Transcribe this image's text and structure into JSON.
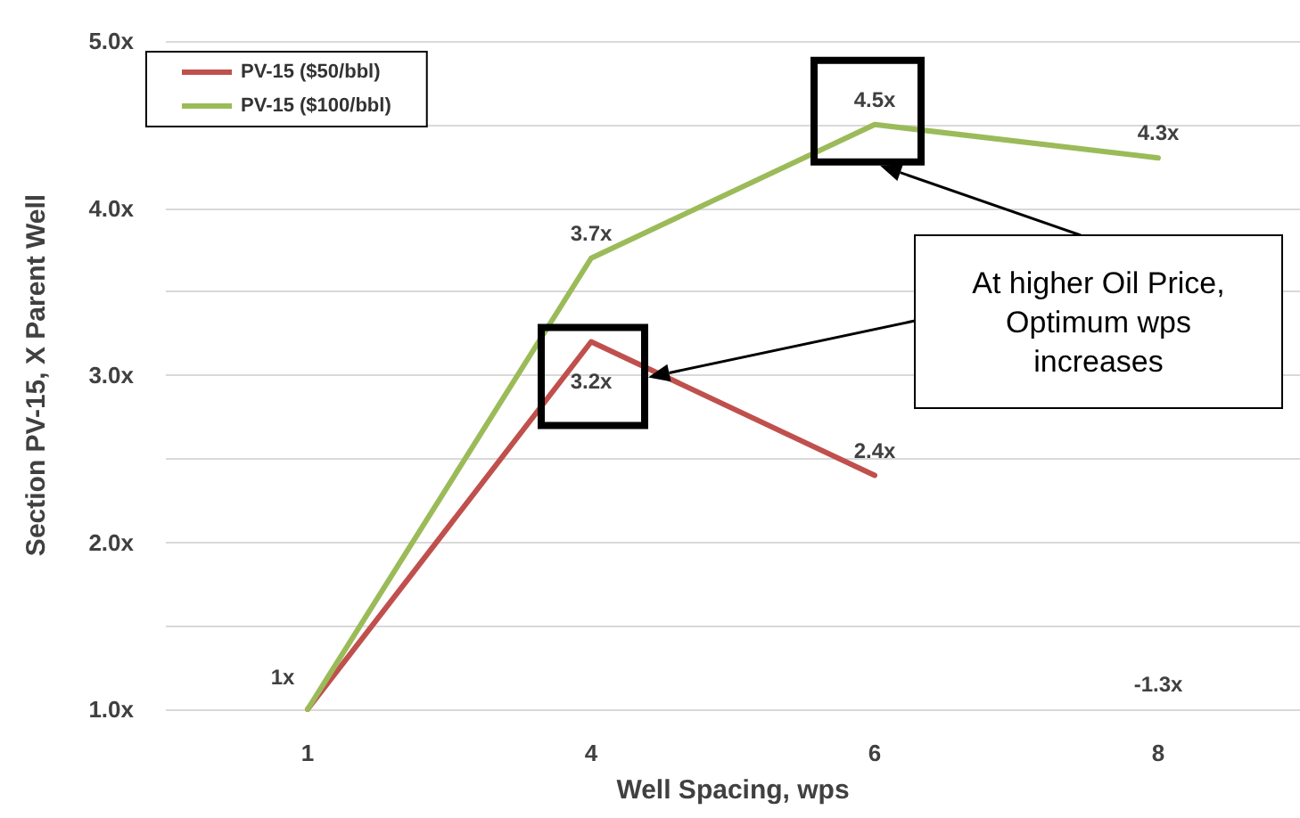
{
  "chart_data": {
    "type": "line",
    "xlabel": "Well Spacing, wps",
    "ylabel": "Section PV-15, X Parent Well",
    "categories": [
      "1",
      "4",
      "6",
      "8"
    ],
    "series": [
      {
        "name": "PV-15 ($50/bbl)",
        "color": "#c0504d",
        "values": [
          1,
          3.2,
          2.4,
          null
        ],
        "value_labels": [
          null,
          "3.2x",
          "2.4x",
          null
        ]
      },
      {
        "name": "PV-15 ($100/bbl)",
        "color": "#9bbb59",
        "values": [
          1,
          3.7,
          4.5,
          4.3
        ],
        "value_labels": [
          "1x",
          "3.7x",
          "4.5x",
          "4.3x"
        ]
      }
    ],
    "ylim": [
      1,
      5
    ],
    "yticks": [
      {
        "value": 1,
        "label": "1.0x"
      },
      {
        "value": 1.5,
        "label": null
      },
      {
        "value": 2,
        "label": "2.0x"
      },
      {
        "value": 2.5,
        "label": null
      },
      {
        "value": 3,
        "label": "3.0x"
      },
      {
        "value": 3.5,
        "label": null
      },
      {
        "value": 4,
        "label": "4.0x"
      },
      {
        "value": 4.5,
        "label": null
      },
      {
        "value": 5,
        "label": "5.0x"
      }
    ],
    "grid": "y",
    "legend": "top left",
    "marker": "none",
    "line_style": "solid",
    "annotations": [
      "At higher Oil Price,\nOptimum wps\nincreases",
      "-1.3x"
    ]
  }
}
